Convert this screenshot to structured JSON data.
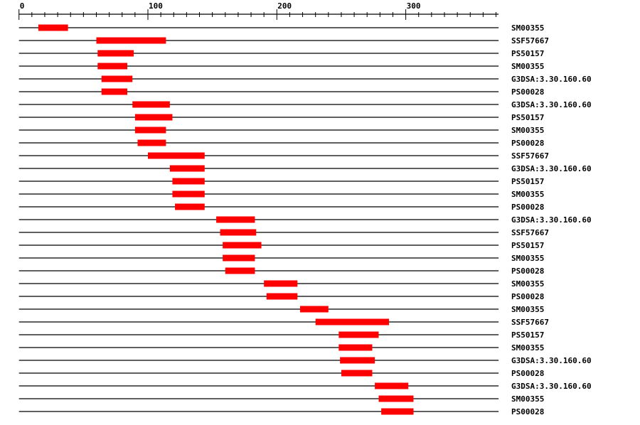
{
  "chart_data": {
    "type": "domain-map",
    "axis": {
      "min": 0,
      "max": 372,
      "major_ticks": [
        0,
        100,
        200,
        300
      ],
      "minor_tick_step": 10
    },
    "bar_color": "#ff0000",
    "line_color": "#000000",
    "rows": [
      {
        "label": "SM00355",
        "start": 15,
        "end": 38
      },
      {
        "label": "SSF57667",
        "start": 60,
        "end": 114
      },
      {
        "label": "PS50157",
        "start": 61,
        "end": 89
      },
      {
        "label": "SM00355",
        "start": 61,
        "end": 84
      },
      {
        "label": "G3DSA:3.30.160.60",
        "start": 64,
        "end": 88
      },
      {
        "label": "PS00028",
        "start": 64,
        "end": 84
      },
      {
        "label": "G3DSA:3.30.160.60",
        "start": 88,
        "end": 117
      },
      {
        "label": "PS50157",
        "start": 90,
        "end": 119
      },
      {
        "label": "SM00355",
        "start": 90,
        "end": 114
      },
      {
        "label": "PS00028",
        "start": 92,
        "end": 114
      },
      {
        "label": "SSF57667",
        "start": 100,
        "end": 144
      },
      {
        "label": "G3DSA:3.30.160.60",
        "start": 117,
        "end": 144
      },
      {
        "label": "PS50157",
        "start": 119,
        "end": 144
      },
      {
        "label": "SM00355",
        "start": 119,
        "end": 144
      },
      {
        "label": "PS00028",
        "start": 121,
        "end": 144
      },
      {
        "label": "G3DSA:3.30.160.60",
        "start": 153,
        "end": 183
      },
      {
        "label": "SSF57667",
        "start": 156,
        "end": 184
      },
      {
        "label": "PS50157",
        "start": 158,
        "end": 188
      },
      {
        "label": "SM00355",
        "start": 158,
        "end": 183
      },
      {
        "label": "PS00028",
        "start": 160,
        "end": 183
      },
      {
        "label": "SM00355",
        "start": 190,
        "end": 216
      },
      {
        "label": "PS00028",
        "start": 192,
        "end": 216
      },
      {
        "label": "SM00355",
        "start": 218,
        "end": 240
      },
      {
        "label": "SSF57667",
        "start": 230,
        "end": 287
      },
      {
        "label": "PS50157",
        "start": 248,
        "end": 279
      },
      {
        "label": "SM00355",
        "start": 248,
        "end": 274
      },
      {
        "label": "G3DSA:3.30.160.60",
        "start": 249,
        "end": 276
      },
      {
        "label": "PS00028",
        "start": 250,
        "end": 274
      },
      {
        "label": "G3DSA:3.30.160.60",
        "start": 276,
        "end": 302
      },
      {
        "label": "SM00355",
        "start": 279,
        "end": 306
      },
      {
        "label": "PS00028",
        "start": 281,
        "end": 306
      }
    ]
  }
}
